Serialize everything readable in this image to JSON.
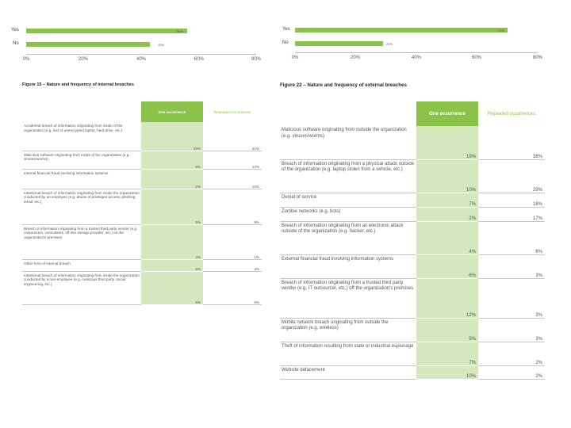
{
  "left_chart": {
    "bars": [
      {
        "label": "Yes",
        "value": "56%",
        "pct": 56
      },
      {
        "label": "No",
        "value": "43%",
        "pct": 43
      }
    ],
    "ticks": [
      "0%",
      "20%",
      "40%",
      "60%",
      "80%"
    ]
  },
  "right_chart": {
    "bars": [
      {
        "label": "Yes",
        "value": "70%",
        "pct": 70
      },
      {
        "label": "No",
        "value": "29%",
        "pct": 29
      }
    ],
    "ticks": [
      "0%",
      "20%",
      "40%",
      "60%",
      "80%"
    ]
  },
  "left_table": {
    "title": "Figure 15 – Nature and frequency of internal breaches",
    "header_one": "One occurrence",
    "header_rep": "Repeated occurrences",
    "rows": [
      {
        "desc": "Accidental breach of information originating from inside of the organization (e.g. lost or unencrypted laptop, hard drive, etc.)",
        "one": "19%",
        "rep": "21%"
      },
      {
        "desc": "Malicious software originating from inside of the organization (e.g. viruses/worms)",
        "one": "9%",
        "rep": "12%"
      },
      {
        "desc": "Internal financial fraud involving information systems",
        "one": "2%",
        "rep": "10%"
      },
      {
        "desc": "Intentional breach of information originating from inside the organization conducted by an employee (e.g. abuse of privileged access, phishing email, etc.)",
        "one": "5%",
        "rep": "9%"
      },
      {
        "desc": "Breach of information originating from a trusted third party vendor (e.g. outsourcers, consultants, off-site storage provider, etc.) on the organization's premises",
        "one": "4%",
        "rep": "1%"
      },
      {
        "desc": "Other form of internal breach",
        "one": "6%",
        "rep": "4%"
      },
      {
        "desc": "Intentional breach of information originating from inside the organization conducted by a non-employee (e.g. malicious third party, social engineering, etc.)",
        "one": "6%",
        "rep": "5%"
      }
    ]
  },
  "right_table": {
    "title": "Figure 22 – Nature and frequency of external breaches",
    "header_one": "One occurrence",
    "header_rep": "Repeated occurrences",
    "rows": [
      {
        "desc": "Malicious software originating from outside the organization (e.g. viruses/worms)",
        "one": "19%",
        "rep": "38%"
      },
      {
        "desc": "Breach of information originating from a physical attack outside of the organization (e.g. laptop stolen from a vehicle, etc.)",
        "one": "10%",
        "rep": "29%"
      },
      {
        "desc": "Denial of service",
        "one": "7%",
        "rep": "18%"
      },
      {
        "desc": "Zombie networks (e.g. bots)",
        "one": "2%",
        "rep": "17%"
      },
      {
        "desc": "Breach of information originating from an electronic attack outside of the organization (e.g. hacker, etc.)",
        "one": "4%",
        "rep": "6%"
      },
      {
        "desc": "External financial fraud involving information systems",
        "one": "6%",
        "rep": "3%"
      },
      {
        "desc": "Breach of information originating from a trusted third party vendor (e.g. IT outsourcer, etc.) off the organization's premises",
        "one": "12%",
        "rep": "3%"
      },
      {
        "desc": "Mobile network breach originating from outside the organization (e.g. wireless)",
        "one": "9%",
        "rep": "3%"
      },
      {
        "desc": "Theft of information resulting from state or industrial espionage",
        "one": "7%",
        "rep": "2%"
      },
      {
        "desc": "Website defacement",
        "one": "10%",
        "rep": "2%"
      }
    ]
  },
  "colors": {
    "accent": "#8bc34a",
    "cell": "#d5e8bd"
  }
}
